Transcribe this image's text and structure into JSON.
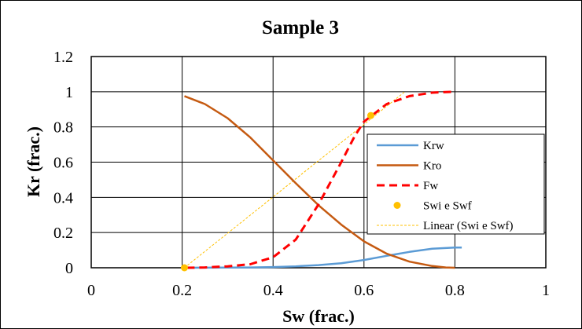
{
  "chart_data": {
    "type": "line",
    "title": "Sample 3",
    "xlabel": "Sw (frac.)",
    "ylabel": "Kr (frac.)",
    "xlim": [
      0,
      1
    ],
    "ylim": [
      0,
      1.2
    ],
    "x_ticks": [
      0,
      0.2,
      0.4,
      0.6,
      0.8,
      1
    ],
    "y_ticks": [
      0,
      0.2,
      0.4,
      0.6,
      0.8,
      1,
      1.2
    ],
    "x_tick_labels": [
      "0",
      "0.2",
      "0.4",
      "0.6",
      "0.8",
      "1"
    ],
    "y_tick_labels": [
      "0",
      "0.2",
      "0.4",
      "0.6",
      "0.8",
      "1",
      "1.2"
    ],
    "grid": true,
    "legend_position": "right",
    "series": [
      {
        "name": "Krw",
        "style": "solid",
        "color": "#5b9bd5",
        "points": [
          [
            0.21,
            0.0
          ],
          [
            0.25,
            0.0005
          ],
          [
            0.3,
            0.001
          ],
          [
            0.35,
            0.002
          ],
          [
            0.4,
            0.004
          ],
          [
            0.45,
            0.008
          ],
          [
            0.5,
            0.015
          ],
          [
            0.55,
            0.026
          ],
          [
            0.6,
            0.044
          ],
          [
            0.65,
            0.068
          ],
          [
            0.7,
            0.09
          ],
          [
            0.75,
            0.108
          ],
          [
            0.8,
            0.115
          ],
          [
            0.815,
            0.115
          ]
        ]
      },
      {
        "name": "Kro",
        "style": "solid",
        "color": "#c55a11",
        "points": [
          [
            0.205,
            0.975
          ],
          [
            0.25,
            0.93
          ],
          [
            0.3,
            0.85
          ],
          [
            0.35,
            0.74
          ],
          [
            0.4,
            0.61
          ],
          [
            0.45,
            0.48
          ],
          [
            0.5,
            0.355
          ],
          [
            0.55,
            0.245
          ],
          [
            0.6,
            0.15
          ],
          [
            0.65,
            0.08
          ],
          [
            0.7,
            0.035
          ],
          [
            0.75,
            0.01
          ],
          [
            0.78,
            0.002
          ],
          [
            0.8,
            0.0
          ]
        ]
      },
      {
        "name": "Fw",
        "style": "dashed",
        "color": "#ff0000",
        "points": [
          [
            0.21,
            0.0
          ],
          [
            0.25,
            0.002
          ],
          [
            0.3,
            0.008
          ],
          [
            0.35,
            0.02
          ],
          [
            0.4,
            0.06
          ],
          [
            0.45,
            0.16
          ],
          [
            0.5,
            0.36
          ],
          [
            0.55,
            0.6
          ],
          [
            0.58,
            0.75
          ],
          [
            0.6,
            0.83
          ],
          [
            0.62,
            0.87
          ],
          [
            0.65,
            0.93
          ],
          [
            0.7,
            0.975
          ],
          [
            0.75,
            0.995
          ],
          [
            0.8,
            1.0
          ]
        ]
      },
      {
        "name": "Swi e Swf",
        "style": "markers",
        "color": "#ffc000",
        "points": [
          [
            0.205,
            0.0
          ],
          [
            0.615,
            0.865
          ]
        ]
      },
      {
        "name": "Linear (Swi e Swf)",
        "style": "dotted",
        "color": "#ffc000",
        "points": [
          [
            0.205,
            0.0
          ],
          [
            0.69,
            1.0
          ]
        ]
      }
    ]
  }
}
